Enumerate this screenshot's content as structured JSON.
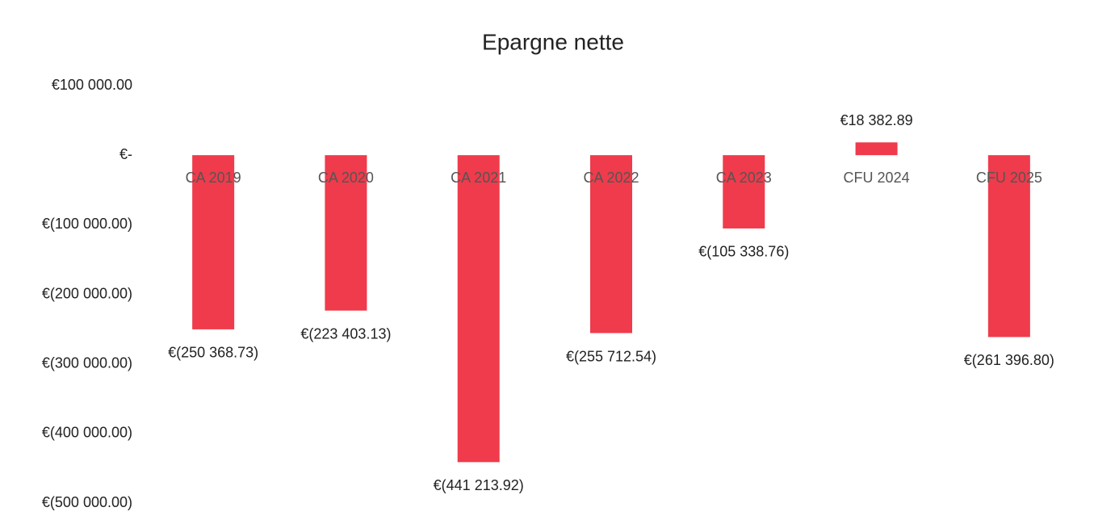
{
  "chart_data": {
    "type": "bar",
    "title": "Epargne nette",
    "categories": [
      "CA 2019",
      "CA 2020",
      "CA 2021",
      "CA 2022",
      "CA 2023",
      "CFU 2024",
      "CFU 2025"
    ],
    "values": [
      -250368.73,
      -223403.13,
      -441213.92,
      -255712.54,
      -105338.76,
      18382.89,
      -261396.8
    ],
    "value_labels": [
      "€(250 368.73)",
      "€(223 403.13)",
      "€(441 213.92)",
      "€(255 712.54)",
      "€(105 338.76)",
      "€18 382.89",
      "€(261 396.80)"
    ],
    "color": "#ef3b4b",
    "ylim": [
      -500000,
      100000
    ],
    "yticks": [
      {
        "value": 100000,
        "label": "€100 000.00"
      },
      {
        "value": 0,
        "label": "€-"
      },
      {
        "value": -100000,
        "label": "€(100 000.00)"
      },
      {
        "value": -200000,
        "label": "€(200 000.00)"
      },
      {
        "value": -300000,
        "label": "€(300 000.00)"
      },
      {
        "value": -400000,
        "label": "€(400 000.00)"
      },
      {
        "value": -500000,
        "label": "€(500 000.00)"
      }
    ]
  }
}
